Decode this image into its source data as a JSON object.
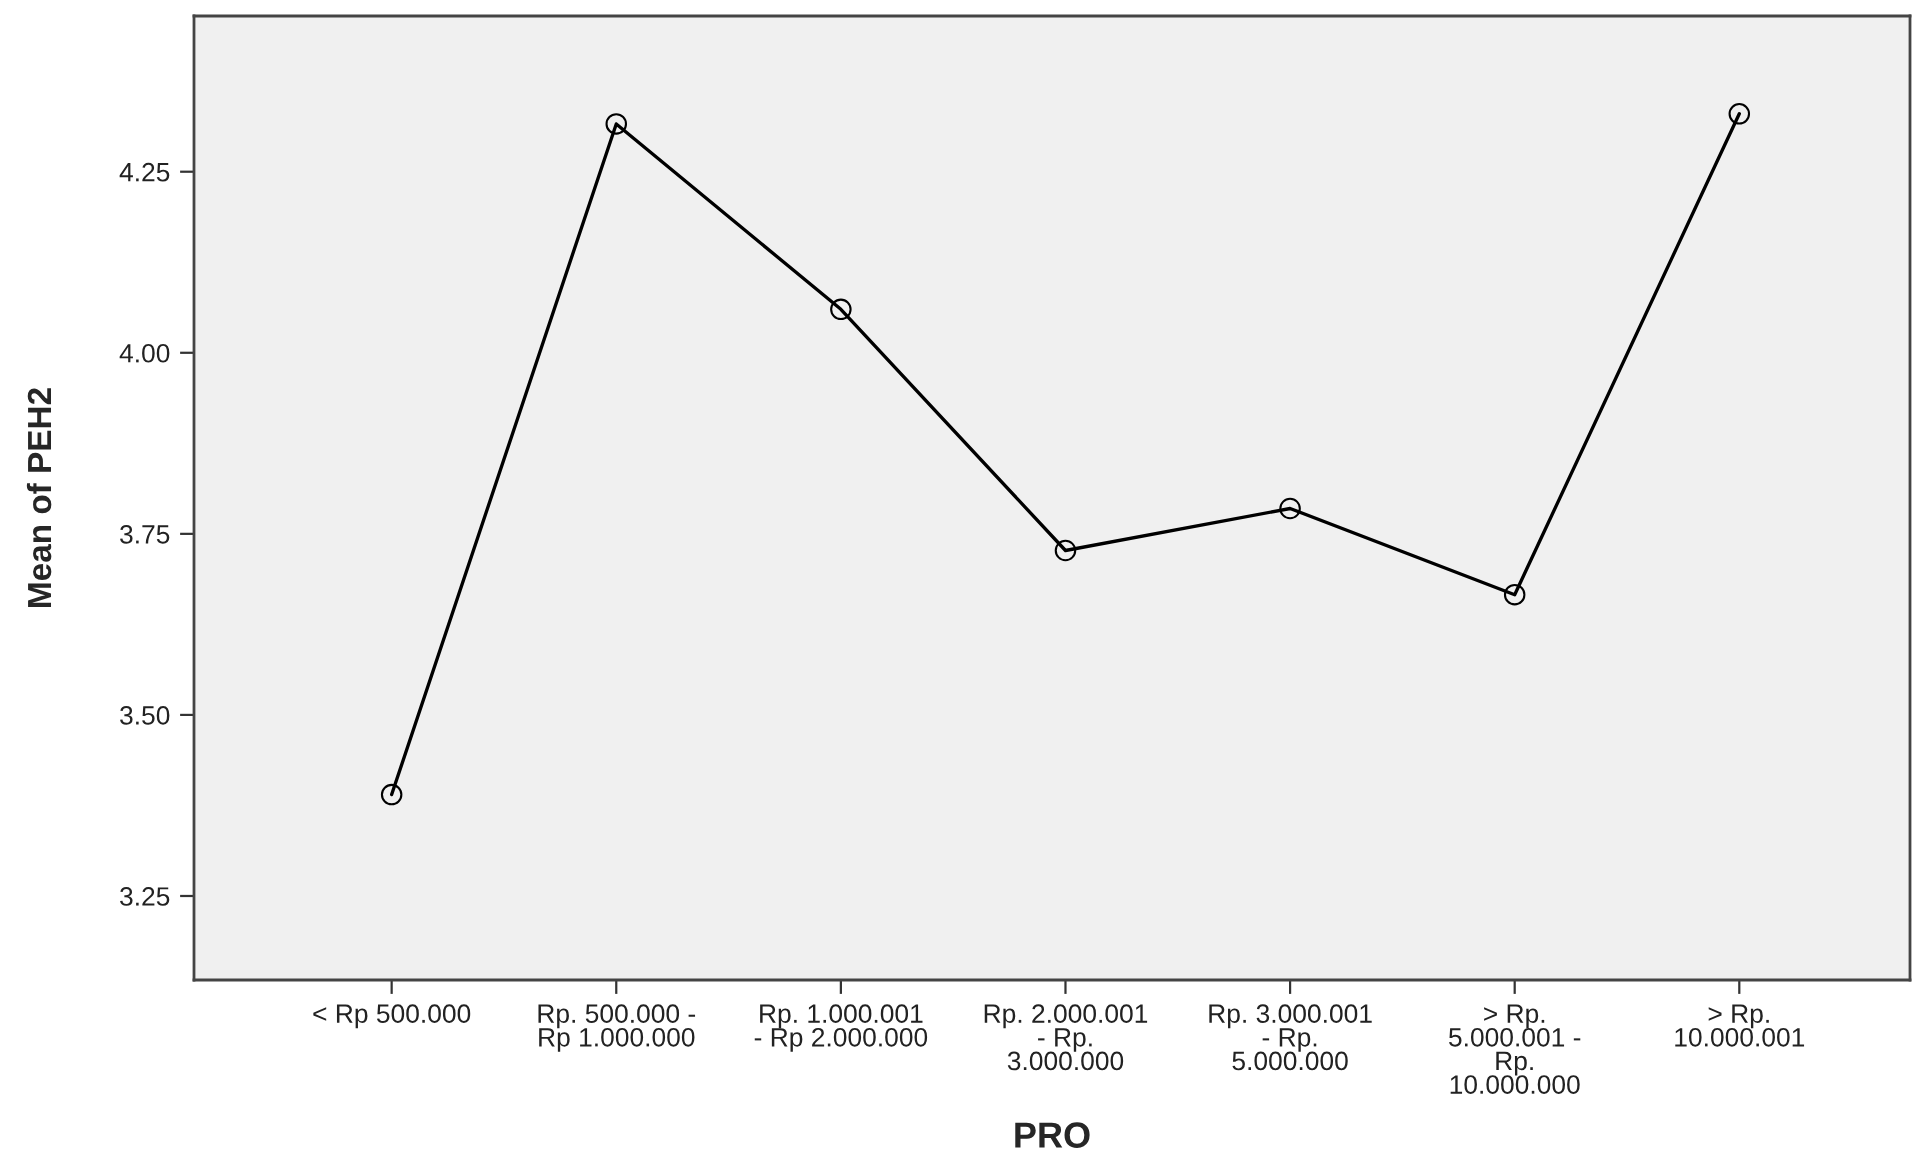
{
  "chart_data": {
    "type": "line",
    "xlabel": "PRO",
    "ylabel": "Mean of PEH2",
    "categories": [
      "< Rp 500.000",
      "Rp. 500.000 -\nRp 1.000.000",
      "Rp. 1.000.001\n- Rp 2.000.000",
      "Rp. 2.000.001\n- Rp.\n3.000.000",
      "Rp. 3.000.001\n- Rp.\n5.000.000",
      "> Rp.\n5.000.001 -\nRp.\n10.000.000",
      "> Rp.\n10.000.001"
    ],
    "series": [
      {
        "color": "#000000",
        "values": [
          3.39,
          4.316,
          4.06,
          3.727,
          3.785,
          3.666,
          4.33
        ]
      }
    ],
    "ylim": [
      3.134,
      4.465
    ],
    "yticks": [
      {
        "value": 3.25,
        "label": "3.25"
      },
      {
        "value": 3.5,
        "label": "3.50"
      },
      {
        "value": 3.75,
        "label": "3.75"
      },
      {
        "value": 4.0,
        "label": "4.00"
      },
      {
        "value": 4.25,
        "label": "4.25"
      }
    ],
    "marker": "circle",
    "line_style": "solid",
    "grid": false
  }
}
